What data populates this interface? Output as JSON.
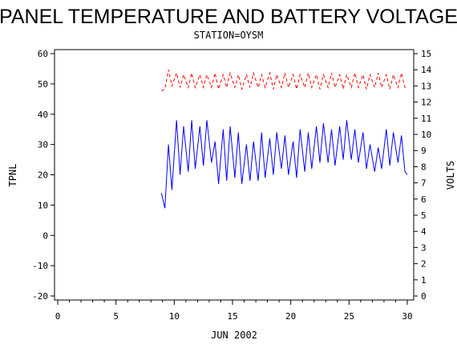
{
  "chart_data": {
    "type": "line",
    "title": "PANEL TEMPERATURE AND BATTERY VOLTAGE",
    "subtitle": "STATION=OYSM",
    "xlabel": "JUN 2002",
    "ylabel_left": "TPNL",
    "ylabel_right": "VOLTS",
    "xlim": [
      0,
      30
    ],
    "ylim_left": [
      -20,
      60
    ],
    "ylim_right": [
      0,
      15
    ],
    "x_ticks": [
      0,
      5,
      10,
      15,
      20,
      25,
      30
    ],
    "y_ticks_left": [
      -20,
      -10,
      0,
      10,
      20,
      30,
      40,
      50,
      60
    ],
    "y_ticks_right": [
      0,
      1,
      2,
      3,
      4,
      5,
      6,
      7,
      8,
      9,
      10,
      11,
      12,
      13,
      14,
      15
    ],
    "grid": false,
    "series": [
      {
        "name": "TPNL",
        "axis": "left",
        "color": "#0000ff",
        "style": "solid",
        "x": [
          8.9,
          9.2,
          9.5,
          9.8,
          10.2,
          10.5,
          10.8,
          11.2,
          11.5,
          11.8,
          12.2,
          12.5,
          12.8,
          13.2,
          13.5,
          13.8,
          14.2,
          14.5,
          14.8,
          15.2,
          15.5,
          15.8,
          16.2,
          16.5,
          16.8,
          17.2,
          17.5,
          17.8,
          18.2,
          18.5,
          18.8,
          19.2,
          19.5,
          19.8,
          20.2,
          20.5,
          20.8,
          21.2,
          21.5,
          21.8,
          22.2,
          22.5,
          22.8,
          23.2,
          23.5,
          23.8,
          24.2,
          24.5,
          24.8,
          25.2,
          25.5,
          25.8,
          26.2,
          26.5,
          26.8,
          27.2,
          27.5,
          27.8,
          28.2,
          28.5,
          28.8,
          29.2,
          29.5,
          29.8,
          30.0
        ],
        "y": [
          14,
          9,
          30,
          15,
          38,
          20,
          36,
          21,
          38,
          22,
          36,
          23,
          38,
          24,
          31,
          17,
          35,
          18,
          36,
          19,
          34,
          17,
          30,
          18,
          31,
          18,
          34,
          19,
          32,
          20,
          34,
          22,
          33,
          20,
          31,
          19,
          35,
          21,
          34,
          22,
          36,
          24,
          37,
          24,
          35,
          23,
          36,
          25,
          38,
          25,
          35,
          24,
          34,
          22,
          30,
          21,
          29,
          22,
          35,
          23,
          34,
          24,
          33,
          21,
          20
        ]
      },
      {
        "name": "VOLTS",
        "axis": "right",
        "color": "#ff0000",
        "style": "dashed",
        "x": [
          8.9,
          9.2,
          9.5,
          9.8,
          10.2,
          10.5,
          10.8,
          11.2,
          11.5,
          11.8,
          12.2,
          12.5,
          12.8,
          13.2,
          13.5,
          13.8,
          14.2,
          14.5,
          14.8,
          15.2,
          15.5,
          15.8,
          16.2,
          16.5,
          16.8,
          17.2,
          17.5,
          17.8,
          18.2,
          18.5,
          18.8,
          19.2,
          19.5,
          19.8,
          20.2,
          20.5,
          20.8,
          21.2,
          21.5,
          21.8,
          22.2,
          22.5,
          22.8,
          23.2,
          23.5,
          23.8,
          24.2,
          24.5,
          24.8,
          25.2,
          25.5,
          25.8,
          26.2,
          26.5,
          26.8,
          27.2,
          27.5,
          27.8,
          28.2,
          28.5,
          28.8,
          29.2,
          29.5,
          29.8,
          30.0
        ],
        "y": [
          12.7,
          12.8,
          14.0,
          13.0,
          13.8,
          12.9,
          13.7,
          12.9,
          13.8,
          12.9,
          13.7,
          12.9,
          13.7,
          12.9,
          13.8,
          12.8,
          13.7,
          12.9,
          13.8,
          12.9,
          13.7,
          12.8,
          13.7,
          12.9,
          13.8,
          12.9,
          13.7,
          12.9,
          13.8,
          12.8,
          13.7,
          12.9,
          13.8,
          12.9,
          13.7,
          12.8,
          13.7,
          12.9,
          13.8,
          12.9,
          13.7,
          12.8,
          13.7,
          12.9,
          13.8,
          12.9,
          13.7,
          12.8,
          13.7,
          12.9,
          13.8,
          12.9,
          13.7,
          12.8,
          13.7,
          12.9,
          13.8,
          12.9,
          13.7,
          12.8,
          13.7,
          12.9,
          13.8,
          12.9,
          12.9
        ]
      }
    ]
  }
}
